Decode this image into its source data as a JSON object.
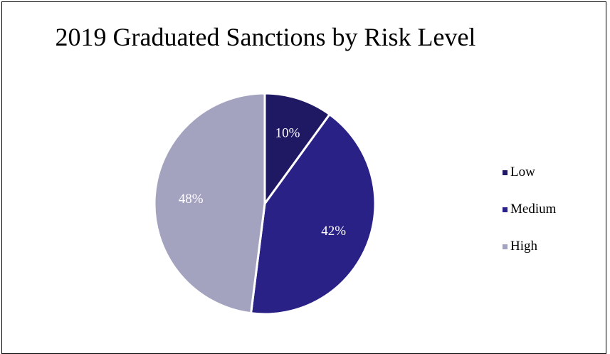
{
  "chart_data": {
    "type": "pie",
    "title": "2019 Graduated Sanctions by Risk Level",
    "categories": [
      "Low",
      "Medium",
      "High"
    ],
    "values": [
      10,
      42,
      48
    ],
    "value_labels": [
      "10%",
      "42%",
      "48%"
    ],
    "colors": [
      "#1f1963",
      "#2a2187",
      "#a3a3bf"
    ],
    "legend_position": "right",
    "start_angle": "12 o'clock",
    "direction": "clockwise"
  }
}
